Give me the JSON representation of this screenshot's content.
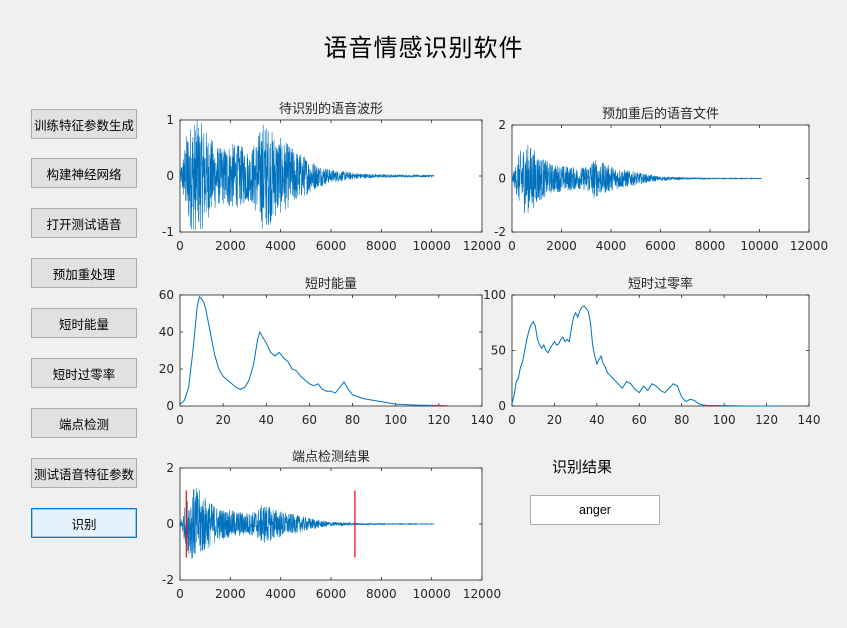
{
  "app_title": "语音情感识别软件",
  "buttons": [
    {
      "label": "训练特征参数生成"
    },
    {
      "label": "构建神经网络"
    },
    {
      "label": "打开测试语音"
    },
    {
      "label": "预加重处理"
    },
    {
      "label": "短时能量"
    },
    {
      "label": "短时过零率"
    },
    {
      "label": "端点检测"
    },
    {
      "label": "测试语音特征参数"
    },
    {
      "label": "识别"
    }
  ],
  "result": {
    "label": "识别结果",
    "value": "anger"
  },
  "colors": {
    "signal": "#0072bd",
    "endpoint": "#ff0000",
    "background": "#f0f0f0",
    "axes_bg": "#ffffff"
  },
  "chart_data": [
    {
      "type": "line",
      "title": "待识别的语音波形",
      "xlim": [
        0,
        12000
      ],
      "ylim": [
        -1,
        1
      ],
      "xticks": [
        "0",
        "2000",
        "4000",
        "6000",
        "8000",
        "10000",
        "12000"
      ],
      "yticks": [
        "-1",
        "0",
        "1"
      ],
      "signal_length": 10100,
      "envelope": {
        "x": [
          0,
          300,
          500,
          700,
          900,
          1200,
          1600,
          2000,
          2400,
          2800,
          3100,
          3300,
          3500,
          3800,
          4100,
          4500,
          5000,
          5500,
          6000,
          7000,
          8000,
          9000,
          10100
        ],
        "y": [
          0.05,
          0.85,
          1.0,
          1.0,
          0.95,
          0.7,
          0.5,
          0.6,
          0.55,
          0.45,
          0.75,
          1.0,
          0.9,
          0.75,
          0.65,
          0.5,
          0.35,
          0.2,
          0.12,
          0.05,
          0.03,
          0.02,
          0.02
        ]
      }
    },
    {
      "type": "line",
      "title": "预加重后的语音文件",
      "xlim": [
        0,
        12000
      ],
      "ylim": [
        -2,
        2
      ],
      "xticks": [
        "0",
        "2000",
        "4000",
        "6000",
        "8000",
        "10000",
        "12000"
      ],
      "yticks": [
        "-2",
        "0",
        "2"
      ],
      "signal_length": 10100,
      "envelope": {
        "x": [
          0,
          300,
          500,
          700,
          900,
          1200,
          1600,
          2000,
          2400,
          2800,
          3100,
          3300,
          3500,
          3800,
          4100,
          4500,
          5000,
          5500,
          6000,
          7000,
          8000,
          9000,
          10100
        ],
        "y": [
          0.05,
          1.0,
          1.3,
          1.3,
          1.1,
          0.8,
          0.55,
          0.5,
          0.45,
          0.4,
          0.55,
          0.75,
          0.65,
          0.55,
          0.45,
          0.35,
          0.25,
          0.15,
          0.08,
          0.04,
          0.02,
          0.015,
          0.01
        ]
      }
    },
    {
      "type": "line",
      "title": "短时能量",
      "xlim": [
        0,
        140
      ],
      "ylim": [
        0,
        60
      ],
      "xticks": [
        "0",
        "20",
        "40",
        "60",
        "80",
        "100",
        "120",
        "140"
      ],
      "yticks": [
        "0",
        "20",
        "40",
        "60"
      ],
      "x": [
        0,
        2,
        4,
        6,
        8,
        9,
        10,
        11,
        12,
        14,
        16,
        18,
        20,
        22,
        24,
        26,
        28,
        30,
        32,
        34,
        36,
        37,
        38,
        40,
        42,
        44,
        46,
        48,
        50,
        52,
        54,
        56,
        58,
        60,
        62,
        64,
        66,
        68,
        70,
        72,
        74,
        76,
        78,
        80,
        85,
        90,
        100,
        110,
        120,
        124
      ],
      "y": [
        1,
        3,
        10,
        30,
        54,
        59,
        58,
        56,
        52,
        40,
        28,
        20,
        16,
        14,
        12,
        10,
        9,
        10,
        14,
        22,
        36,
        40,
        38,
        34,
        29,
        27,
        29,
        26,
        24,
        20,
        19,
        16,
        14,
        12,
        11,
        12,
        9,
        8,
        8,
        7,
        10,
        13,
        9,
        6,
        4,
        3,
        1,
        0.5,
        0.3,
        0.2
      ]
    },
    {
      "type": "line",
      "title": "短时过零率",
      "xlim": [
        0,
        140
      ],
      "ylim": [
        0,
        100
      ],
      "xticks": [
        "0",
        "20",
        "40",
        "60",
        "80",
        "100",
        "120",
        "140"
      ],
      "yticks": [
        "0",
        "50",
        "100"
      ],
      "x": [
        0,
        1,
        2,
        3,
        4,
        5,
        6,
        7,
        8,
        9,
        10,
        11,
        12,
        13,
        14,
        15,
        16,
        17,
        18,
        19,
        20,
        21,
        22,
        23,
        24,
        25,
        26,
        27,
        28,
        29,
        30,
        31,
        32,
        33,
        34,
        35,
        36,
        37,
        38,
        39,
        40,
        41,
        42,
        43,
        44,
        45,
        46,
        48,
        50,
        52,
        54,
        56,
        58,
        60,
        62,
        64,
        66,
        68,
        70,
        72,
        74,
        76,
        78,
        80,
        82,
        84,
        86,
        88,
        90,
        92,
        95,
        100,
        110,
        120,
        126
      ],
      "y": [
        2,
        10,
        22,
        25,
        35,
        40,
        50,
        60,
        68,
        73,
        76,
        72,
        60,
        55,
        52,
        55,
        50,
        48,
        52,
        55,
        58,
        55,
        56,
        60,
        62,
        58,
        60,
        58,
        70,
        80,
        84,
        80,
        86,
        89,
        90,
        88,
        85,
        75,
        55,
        45,
        38,
        42,
        45,
        38,
        35,
        30,
        28,
        24,
        20,
        16,
        22,
        20,
        15,
        12,
        18,
        14,
        20,
        18,
        14,
        12,
        16,
        20,
        18,
        8,
        4,
        6,
        5,
        2,
        1,
        0.5,
        0.5,
        0.3,
        0,
        0,
        0
      ]
    },
    {
      "type": "line",
      "title": "端点检测结果",
      "xlim": [
        0,
        12000
      ],
      "ylim": [
        -2,
        2
      ],
      "xticks": [
        "0",
        "2000",
        "4000",
        "6000",
        "8000",
        "10000",
        "12000"
      ],
      "yticks": [
        "-2",
        "0",
        "2"
      ],
      "signal_length": 10100,
      "endpoints": [
        250,
        6950
      ],
      "endpoint_ylim": [
        -1.2,
        1.2
      ],
      "envelope": {
        "x": [
          0,
          300,
          500,
          700,
          900,
          1200,
          1600,
          2000,
          2400,
          2800,
          3100,
          3300,
          3500,
          3800,
          4100,
          4500,
          5000,
          5500,
          6000,
          7000,
          8000,
          9000,
          10100
        ],
        "y": [
          0.05,
          1.0,
          1.3,
          1.3,
          1.1,
          0.8,
          0.55,
          0.5,
          0.45,
          0.4,
          0.55,
          0.75,
          0.65,
          0.55,
          0.45,
          0.35,
          0.25,
          0.15,
          0.08,
          0.04,
          0.02,
          0.015,
          0.01
        ]
      }
    }
  ]
}
